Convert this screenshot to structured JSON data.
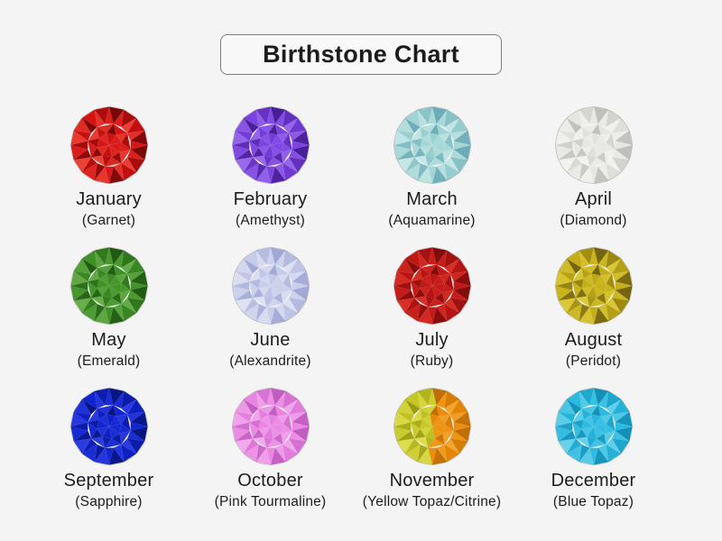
{
  "page": {
    "background": "#f4f4f4",
    "text_color": "#1c1c1c"
  },
  "title": "Birthstone Chart",
  "title_box": {
    "border_color": "#7e7e82",
    "background": "#f8f8f8"
  },
  "stones": [
    {
      "month": "January",
      "stone": "(Garnet)",
      "gem": "garnet-red-round-gem",
      "palette": {
        "dark": "#3f0303",
        "base": "#d41111",
        "light": "#ff6a55"
      }
    },
    {
      "month": "February",
      "stone": "(Amethyst)",
      "gem": "amethyst-purple-round-gem",
      "palette": {
        "dark": "#2c0a6a",
        "base": "#7940e0",
        "light": "#b28cf4"
      }
    },
    {
      "month": "March",
      "stone": "(Aquamarine)",
      "gem": "aquamarine-pale-cyan-round-gem",
      "palette": {
        "dark": "#4f93a6",
        "base": "#9fd4d4",
        "light": "#e6f7f4"
      }
    },
    {
      "month": "April",
      "stone": "(Diamond)",
      "gem": "diamond-white-round-gem",
      "palette": {
        "dark": "#a9a9a2",
        "base": "#e6e6e0",
        "light": "#fcfcfa"
      }
    },
    {
      "month": "May",
      "stone": "(Emerald)",
      "gem": "emerald-green-round-gem",
      "palette": {
        "dark": "#0f3a08",
        "base": "#3e8f25",
        "light": "#88c868"
      }
    },
    {
      "month": "June",
      "stone": "(Alexandrite)",
      "gem": "alexandrite-lavender-round-gem",
      "palette": {
        "dark": "#8a92c8",
        "base": "#c6cbe9",
        "light": "#f3f4fb"
      }
    },
    {
      "month": "July",
      "stone": "(Ruby)",
      "gem": "ruby-red-round-gem",
      "palette": {
        "dark": "#5c0606",
        "base": "#c01616",
        "light": "#ef4433"
      }
    },
    {
      "month": "August",
      "stone": "(Peridot)",
      "gem": "peridot-olive-yellow-round-gem",
      "palette": {
        "dark": "#43350a",
        "base": "#c3ad16",
        "light": "#ece04e"
      }
    },
    {
      "month": "September",
      "stone": "(Sapphire)",
      "gem": "sapphire-blue-round-gem",
      "palette": {
        "dark": "#050c54",
        "base": "#1023cf",
        "light": "#4153ef"
      }
    },
    {
      "month": "October",
      "stone": "(Pink Tourmaline)",
      "gem": "pink-tourmaline-round-gem",
      "palette": {
        "dark": "#a844ad",
        "base": "#e983e2",
        "light": "#f9c9f5"
      }
    },
    {
      "month": "November",
      "stone": "(Yellow Topaz/Citrine)",
      "gem": "yellow-topaz-citrine-round-gem",
      "palette": {
        "dark": "#7e7d0e",
        "base": "#c5c623",
        "light": "#eef06a"
      },
      "palette2": {
        "dark": "#a35a04",
        "base": "#ec8c07",
        "light": "#f7bc55"
      }
    },
    {
      "month": "December",
      "stone": "(Blue Topaz)",
      "gem": "blue-topaz-cyan-round-gem",
      "palette": {
        "dark": "#0878a0",
        "base": "#28b8e0",
        "light": "#9ae6f2"
      }
    }
  ]
}
